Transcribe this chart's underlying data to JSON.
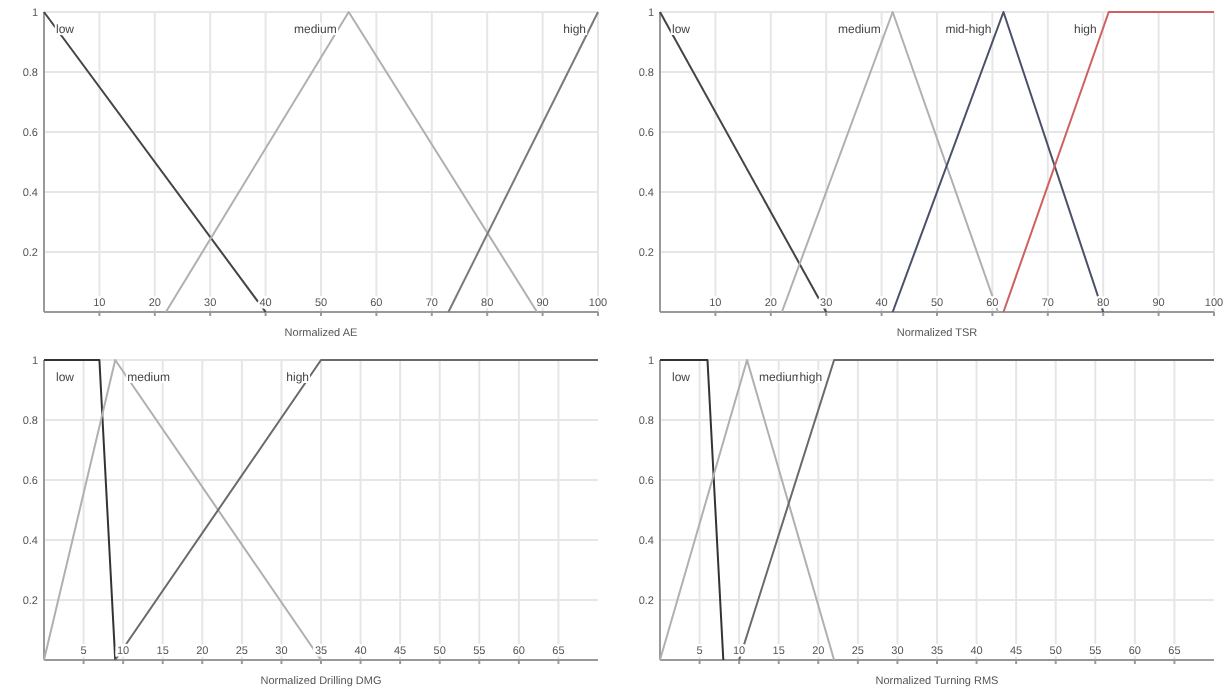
{
  "chart_data": [
    {
      "type": "line",
      "xlabel": "Normalized AE",
      "xlim": [
        0,
        100
      ],
      "xticks": [
        10,
        20,
        30,
        40,
        50,
        60,
        70,
        80,
        90,
        100
      ],
      "ylim": [
        0,
        1
      ],
      "yticks": [
        0.2,
        0.4,
        0.6,
        0.8,
        1
      ],
      "grid": true,
      "marker": "none",
      "series": [
        {
          "name": "low",
          "color": "#444444",
          "x": [
            0,
            40
          ],
          "values": [
            1,
            0
          ]
        },
        {
          "name": "medium",
          "color": "#b0b0b0",
          "x": [
            22,
            55,
            89
          ],
          "values": [
            0,
            1,
            0
          ]
        },
        {
          "name": "high",
          "color": "#7a7a7a",
          "x": [
            73,
            100
          ],
          "values": [
            0,
            1
          ]
        }
      ]
    },
    {
      "type": "line",
      "xlabel": "Normalized TSR",
      "xlim": [
        0,
        100
      ],
      "xticks": [
        10,
        20,
        30,
        40,
        50,
        60,
        70,
        80,
        90,
        100
      ],
      "ylim": [
        0,
        1
      ],
      "yticks": [
        0.2,
        0.4,
        0.6,
        0.8,
        1
      ],
      "grid": true,
      "marker": "none",
      "series": [
        {
          "name": "low",
          "color": "#444444",
          "x": [
            0,
            30
          ],
          "values": [
            1,
            0
          ]
        },
        {
          "name": "medium",
          "color": "#b0b0b0",
          "x": [
            22,
            42,
            61
          ],
          "values": [
            0,
            1,
            0
          ]
        },
        {
          "name": "mid-high",
          "color": "#4a5068",
          "x": [
            42,
            62,
            80
          ],
          "values": [
            0,
            1,
            0
          ]
        },
        {
          "name": "high",
          "color": "#d06060",
          "x": [
            62,
            81,
            100
          ],
          "values": [
            0,
            1,
            1
          ]
        }
      ]
    },
    {
      "type": "line",
      "xlabel": "Normalized Drilling DMG",
      "xlim": [
        0,
        70
      ],
      "xticks": [
        5,
        10,
        15,
        20,
        25,
        30,
        35,
        40,
        45,
        50,
        55,
        60,
        65
      ],
      "ylim": [
        0,
        1
      ],
      "yticks": [
        0.2,
        0.4,
        0.6,
        0.8,
        1
      ],
      "grid": true,
      "marker": "none",
      "series": [
        {
          "name": "low",
          "color": "#333333",
          "x": [
            0,
            7,
            9
          ],
          "values": [
            1,
            1,
            0
          ]
        },
        {
          "name": "medium",
          "color": "#b0b0b0",
          "x": [
            0,
            9,
            35
          ],
          "values": [
            0,
            1,
            0
          ]
        },
        {
          "name": "high",
          "color": "#6a6a6a",
          "x": [
            9,
            35,
            70
          ],
          "values": [
            0,
            1,
            1
          ]
        }
      ]
    },
    {
      "type": "line",
      "xlabel": "Normalized Turning RMS",
      "xlim": [
        0,
        70
      ],
      "xticks": [
        5,
        10,
        15,
        20,
        25,
        30,
        35,
        40,
        45,
        50,
        55,
        60,
        65
      ],
      "ylim": [
        0,
        1
      ],
      "yticks": [
        0.2,
        0.4,
        0.6,
        0.8,
        1
      ],
      "grid": true,
      "marker": "none",
      "series": [
        {
          "name": "low",
          "color": "#333333",
          "x": [
            0,
            6,
            8
          ],
          "values": [
            1,
            1,
            0
          ]
        },
        {
          "name": "medium",
          "color": "#b0b0b0",
          "x": [
            0,
            11,
            22
          ],
          "values": [
            0,
            1,
            0
          ]
        },
        {
          "name": "high",
          "color": "#6a6a6a",
          "x": [
            10,
            22,
            70
          ],
          "values": [
            0,
            1,
            1
          ]
        }
      ]
    }
  ]
}
